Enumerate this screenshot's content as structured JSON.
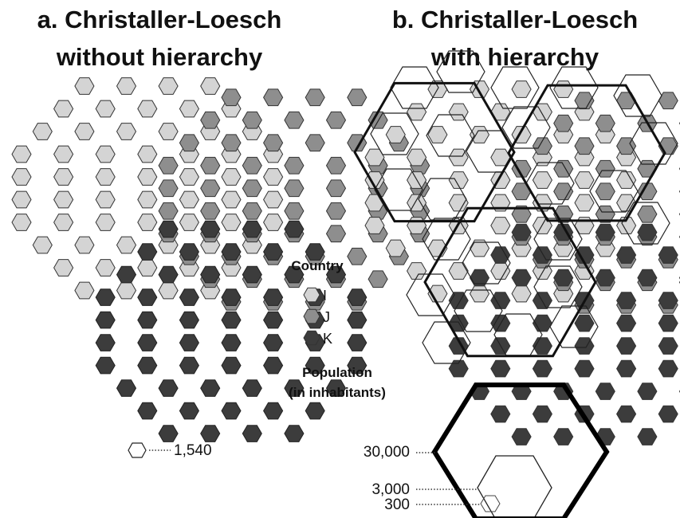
{
  "panel_a": {
    "title_line1": "a. Christaller-Loesch",
    "title_line2": "without hierarchy"
  },
  "panel_b": {
    "title_line1": "b. Christaller-Loesch",
    "title_line2": "with hierarchy"
  },
  "legend": {
    "country_title": "Country",
    "countries": [
      {
        "label": "I",
        "color": "#d4d4d4"
      },
      {
        "label": "J",
        "color": "#8e8e8e"
      },
      {
        "label": "K",
        "color": "#3c3c3c"
      }
    ],
    "population_title_line1": "Population",
    "population_title_line2": "(in inhabitants)",
    "unit_population": "1,540",
    "population_levels": [
      "30,000",
      "3,000",
      "300"
    ]
  },
  "colors": {
    "country_I": "#d4d4d4",
    "country_J": "#8e8e8e",
    "country_K": "#3c3c3c",
    "outline": "#222222",
    "background": "#ffffff"
  }
}
